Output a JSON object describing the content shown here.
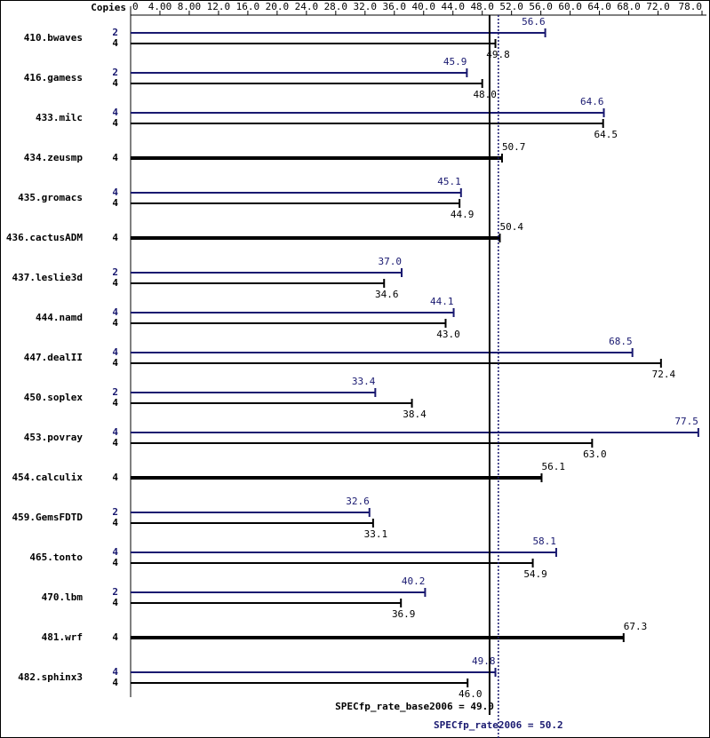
{
  "chart_data": {
    "type": "hbar",
    "copies_label": "Copies",
    "categories": [
      "410.bwaves",
      "416.gamess",
      "433.milc",
      "434.zeusmp",
      "435.gromacs",
      "436.cactusADM",
      "437.leslie3d",
      "444.namd",
      "447.dealII",
      "450.soplex",
      "453.povray",
      "454.calculix",
      "459.GemsFDTD",
      "465.tonto",
      "470.lbm",
      "481.wrf",
      "482.sphinx3"
    ],
    "series": [
      {
        "color": "#191970",
        "copies": [
          2,
          2,
          4,
          null,
          4,
          null,
          2,
          4,
          4,
          2,
          4,
          null,
          2,
          4,
          2,
          null,
          4
        ],
        "values": [
          56.6,
          45.9,
          64.6,
          null,
          45.1,
          null,
          37.0,
          44.1,
          68.5,
          33.4,
          77.5,
          null,
          32.6,
          58.1,
          40.2,
          null,
          49.8
        ],
        "value_labels": [
          "56.6",
          "45.9",
          "64.6",
          null,
          "45.1",
          null,
          "37.0",
          "44.1",
          "68.5",
          "33.4",
          "77.5",
          null,
          "32.6",
          "58.1",
          "40.2",
          null,
          "49.8"
        ]
      },
      {
        "color": "#000000",
        "copies": [
          4,
          4,
          4,
          4,
          4,
          4,
          4,
          4,
          4,
          4,
          4,
          4,
          4,
          4,
          4,
          4,
          4
        ],
        "values": [
          49.8,
          48.0,
          64.5,
          50.7,
          44.9,
          50.4,
          34.6,
          43.0,
          72.4,
          38.4,
          63.0,
          56.1,
          33.1,
          54.9,
          36.9,
          67.3,
          46.0
        ],
        "value_labels": [
          "49.8",
          "48.0",
          "64.5",
          "50.7",
          "44.9",
          "50.4",
          "34.6",
          "43.0",
          "72.4",
          "38.4",
          "63.0",
          "56.1",
          "33.1",
          "54.9",
          "36.9",
          "67.3",
          "46.0"
        ]
      }
    ],
    "xlim": [
      0,
      78
    ],
    "xticks": [
      0,
      {
        "value": 4,
        "label": "4.00"
      },
      {
        "value": 8,
        "label": "8.00"
      },
      {
        "value": 12,
        "label": "12.0"
      },
      {
        "value": 16,
        "label": "16.0"
      },
      {
        "value": 20,
        "label": "20.0"
      },
      {
        "value": 24,
        "label": "24.0"
      },
      {
        "value": 28,
        "label": "28.0"
      },
      {
        "value": 32,
        "label": "32.0"
      },
      {
        "value": 36,
        "label": "36.0"
      },
      {
        "value": 40,
        "label": "40.0"
      },
      {
        "value": 44,
        "label": "44.0"
      },
      {
        "value": 48,
        "label": "48.0"
      },
      {
        "value": 52,
        "label": "52.0"
      },
      {
        "value": 56,
        "label": "56.0"
      },
      {
        "value": 60,
        "label": "60.0"
      },
      {
        "value": 64,
        "label": "64.0"
      },
      {
        "value": 68,
        "label": "68.0"
      },
      {
        "value": 72,
        "label": "72.0"
      },
      {
        "value": 78,
        "label": "78.0"
      }
    ],
    "reference_lines": [
      {
        "label": "SPECfp_rate_base2006 = 49.0",
        "value": 49.0,
        "color": "#000000",
        "style": "solid"
      },
      {
        "label": "SPECfp_rate2006 = 50.2",
        "value": 50.2,
        "color": "#191970",
        "style": "dotted"
      }
    ]
  }
}
